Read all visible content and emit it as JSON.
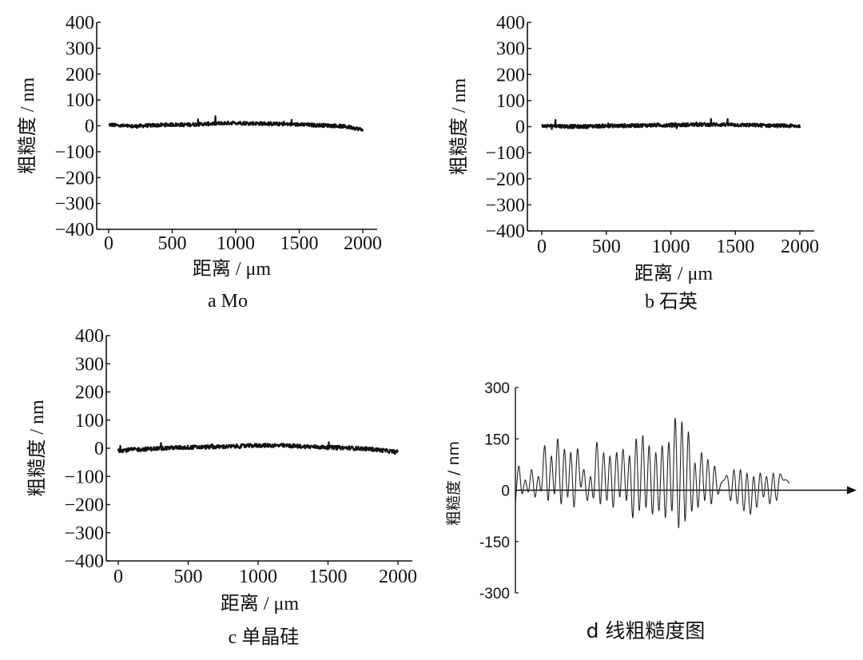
{
  "chart_data": [
    {
      "type": "line",
      "caption": "a  Mo",
      "xlabel": "距离 / μm",
      "ylabel": "粗糙度 / nm",
      "xlim": [
        0,
        2000
      ],
      "ylim": [
        -400,
        400
      ],
      "xticks": [
        "0",
        "500",
        "1000",
        "1500",
        "2000"
      ],
      "yticks": [
        "400",
        "300",
        "200",
        "100",
        "0",
        "−100",
        "−200",
        "−300",
        "−400"
      ],
      "x": [
        0,
        100,
        200,
        300,
        400,
        500,
        600,
        700,
        800,
        900,
        1000,
        1100,
        1200,
        1300,
        1400,
        1500,
        1600,
        1700,
        1800,
        1900,
        2000
      ],
      "y": [
        5,
        0,
        -2,
        1,
        3,
        5,
        4,
        6,
        8,
        10,
        12,
        10,
        9,
        8,
        6,
        5,
        3,
        2,
        0,
        -5,
        -15
      ]
    },
    {
      "type": "line",
      "caption": "b  石英",
      "xlabel": "距离 / μm",
      "ylabel": "粗糙度 / nm",
      "xlim": [
        0,
        2000
      ],
      "ylim": [
        -400,
        400
      ],
      "xticks": [
        "0",
        "500",
        "1000",
        "1500",
        "2000"
      ],
      "yticks": [
        "400",
        "300",
        "200",
        "100",
        "0",
        "−100",
        "−200",
        "−300",
        "−400"
      ],
      "x": [
        0,
        100,
        200,
        300,
        400,
        500,
        600,
        700,
        800,
        900,
        1000,
        1100,
        1200,
        1300,
        1400,
        1500,
        1600,
        1700,
        1800,
        1900,
        2000
      ],
      "y": [
        2,
        3,
        1,
        0,
        2,
        3,
        3,
        4,
        5,
        6,
        6,
        7,
        8,
        8,
        8,
        7,
        6,
        5,
        4,
        3,
        2
      ]
    },
    {
      "type": "line",
      "caption": "c  单晶硅",
      "xlabel": "距离 / μm",
      "ylabel": "粗糙度 / nm",
      "xlim": [
        0,
        2000
      ],
      "ylim": [
        -400,
        400
      ],
      "xticks": [
        "0",
        "500",
        "1000",
        "1500",
        "2000"
      ],
      "yticks": [
        "400",
        "300",
        "200",
        "100",
        "0",
        "−100",
        "−200",
        "−300",
        "−400"
      ],
      "x": [
        0,
        100,
        200,
        300,
        400,
        500,
        600,
        700,
        800,
        900,
        1000,
        1100,
        1200,
        1300,
        1400,
        1500,
        1600,
        1700,
        1800,
        1900,
        2000
      ],
      "y": [
        -8,
        -5,
        -3,
        0,
        2,
        3,
        4,
        5,
        6,
        8,
        10,
        10,
        9,
        7,
        5,
        3,
        2,
        0,
        -3,
        -8,
        -14
      ]
    },
    {
      "type": "line",
      "caption": "d 线粗糙度图",
      "ylabel": "粗糙度 / nm",
      "ylim": [
        -300,
        300
      ],
      "yticks": [
        "300",
        "150",
        "0",
        "-150",
        "-300"
      ],
      "x": [
        0,
        0.5,
        1,
        1.5,
        2,
        2.5,
        3,
        3.5,
        4,
        4.5,
        5,
        5.5,
        6,
        6.5,
        7,
        7.5,
        8,
        8.5,
        9,
        9.5,
        10,
        10.5,
        11,
        11.5,
        12,
        12.5,
        13,
        13.5,
        14,
        14.5,
        15,
        15.5,
        16,
        16.5,
        17,
        17.5,
        18,
        18.5,
        19,
        19.5,
        20,
        20.5,
        21,
        21.5,
        22,
        22.5,
        23,
        23.5,
        24,
        24.5,
        25,
        25.5,
        26,
        26.5,
        27,
        27.5,
        28,
        28.5,
        29,
        29.5,
        30,
        30.5,
        31,
        31.5,
        32,
        32.5,
        33,
        33.5,
        34,
        34.5,
        35,
        35.5,
        36,
        36.5,
        37,
        37.5,
        38,
        38.5,
        39,
        39.5,
        40,
        40.5,
        41,
        41.5,
        42
      ],
      "y": [
        -40,
        70,
        -10,
        30,
        -5,
        60,
        -20,
        40,
        0,
        130,
        -30,
        100,
        -10,
        150,
        -40,
        120,
        -20,
        110,
        -50,
        120,
        10,
        60,
        -30,
        40,
        -20,
        140,
        -40,
        110,
        -30,
        100,
        -50,
        110,
        -20,
        120,
        -30,
        100,
        -80,
        150,
        -60,
        160,
        -50,
        130,
        -70,
        110,
        -60,
        130,
        -80,
        140,
        -60,
        210,
        -110,
        200,
        -90,
        170,
        -60,
        80,
        -50,
        110,
        -30,
        90,
        -40,
        70,
        -10,
        20,
        30,
        40,
        -30,
        60,
        -40,
        60,
        -60,
        50,
        -70,
        40,
        -50,
        50,
        -20,
        40,
        -40,
        50,
        -30,
        45,
        30,
        30,
        20
      ]
    }
  ]
}
